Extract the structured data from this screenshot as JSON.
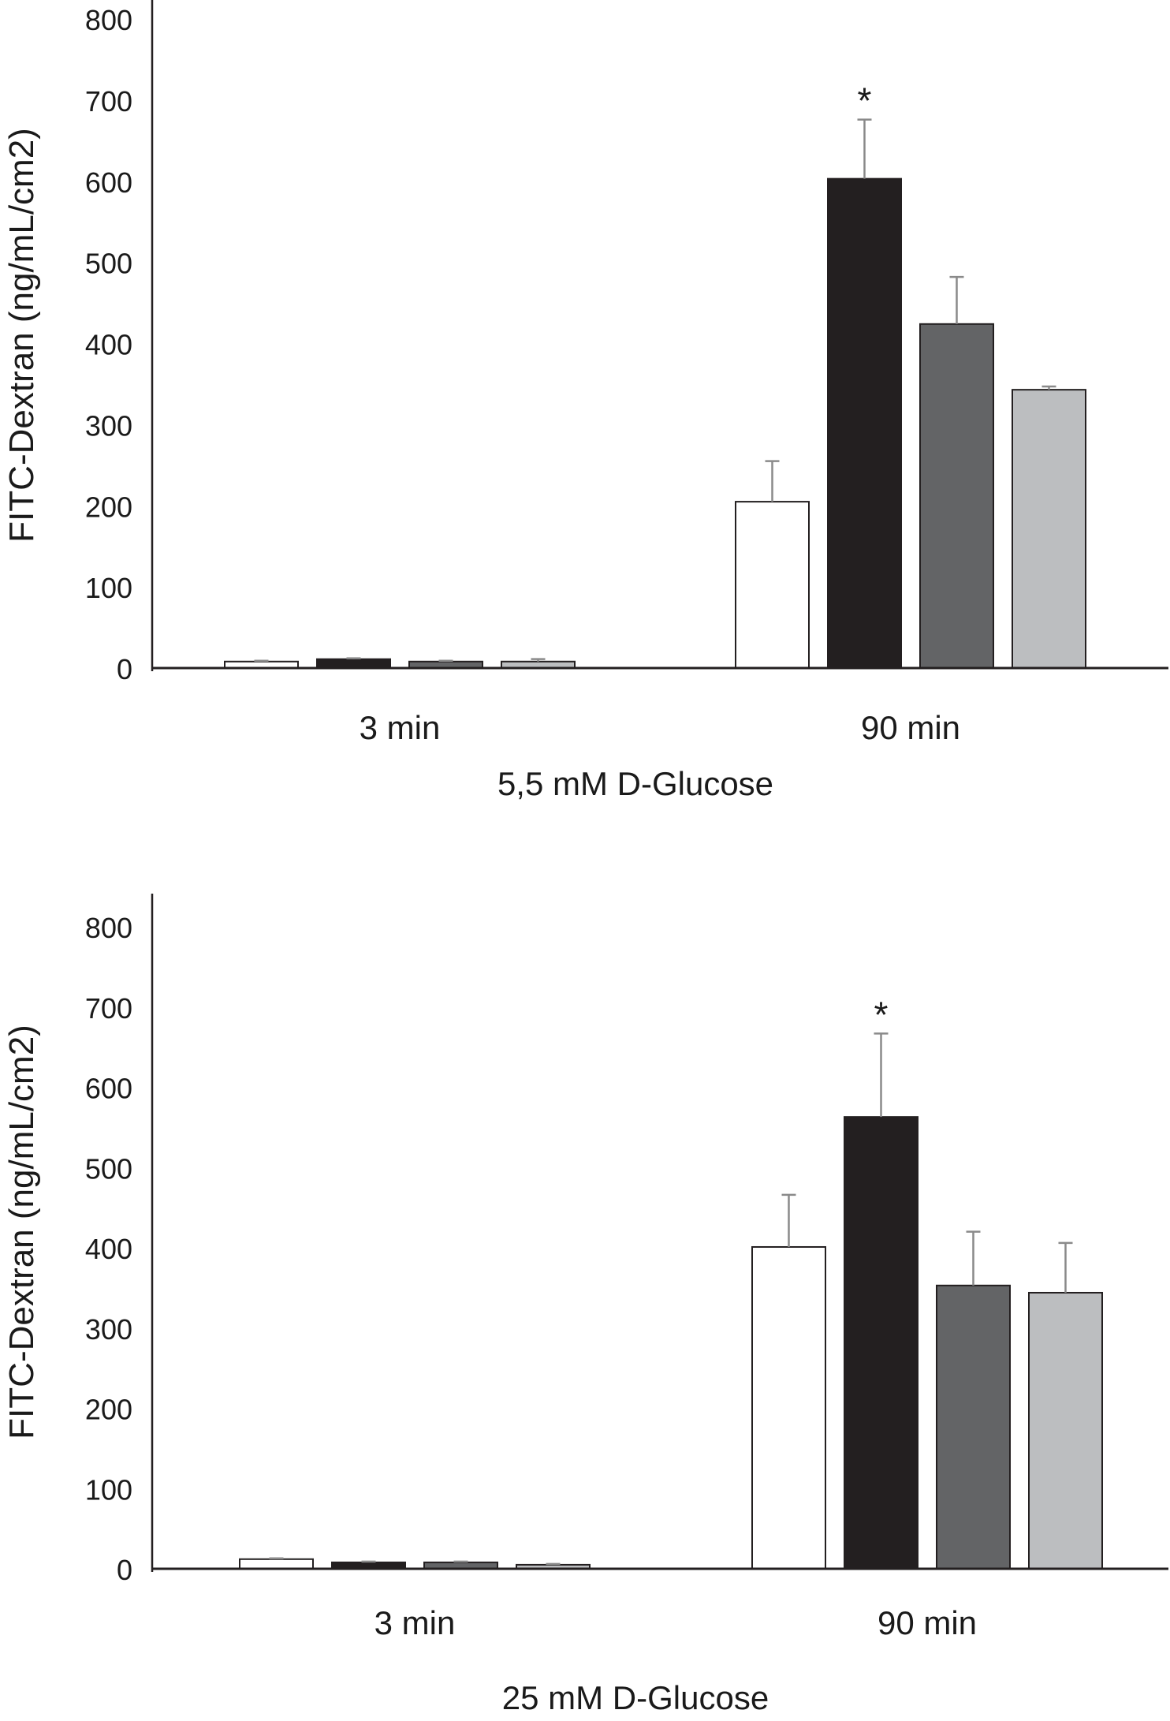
{
  "colors": {
    "series": [
      "#ffffff",
      "#231f20",
      "#636466",
      "#bcbec0"
    ],
    "outline": "#231f20",
    "error_bar": "#8a8a8a"
  },
  "chart_data": [
    {
      "type": "bar",
      "categories": [
        "3 min",
        "90 min"
      ],
      "series": [
        {
          "values": [
            8,
            205
          ],
          "errors": [
            1,
            50
          ]
        },
        {
          "values": [
            11,
            603
          ],
          "errors": [
            1,
            73
          ]
        },
        {
          "values": [
            8,
            424
          ],
          "errors": [
            1,
            58
          ]
        },
        {
          "values": [
            8,
            343
          ],
          "errors": [
            3,
            4
          ]
        }
      ],
      "ylabel": "FITC-Dextran (ng/mL/cm2)",
      "xlabel": "5,5 mM D-Glucose",
      "ylim": [
        0,
        800
      ],
      "yticks": [
        0,
        100,
        200,
        300,
        400,
        500,
        600,
        700,
        800
      ],
      "annotations": [
        {
          "category": "90 min",
          "series_index": 1,
          "text": "*"
        }
      ],
      "grid": false,
      "legend": "none"
    },
    {
      "type": "bar",
      "categories": [
        "3 min",
        "90 min"
      ],
      "series": [
        {
          "values": [
            12,
            401
          ],
          "errors": [
            1,
            65
          ]
        },
        {
          "values": [
            8,
            563
          ],
          "errors": [
            1,
            104
          ]
        },
        {
          "values": [
            8,
            353
          ],
          "errors": [
            1,
            67
          ]
        },
        {
          "values": [
            5,
            344
          ],
          "errors": [
            1,
            62
          ]
        }
      ],
      "ylabel": "FITC-Dextran (ng/mL/cm2)",
      "xlabel": "25 mM D-Glucose",
      "ylim": [
        0,
        800
      ],
      "yticks": [
        0,
        100,
        200,
        300,
        400,
        500,
        600,
        700,
        800
      ],
      "annotations": [
        {
          "category": "90 min",
          "series_index": 1,
          "text": "*"
        }
      ],
      "grid": false,
      "legend": "none"
    }
  ]
}
